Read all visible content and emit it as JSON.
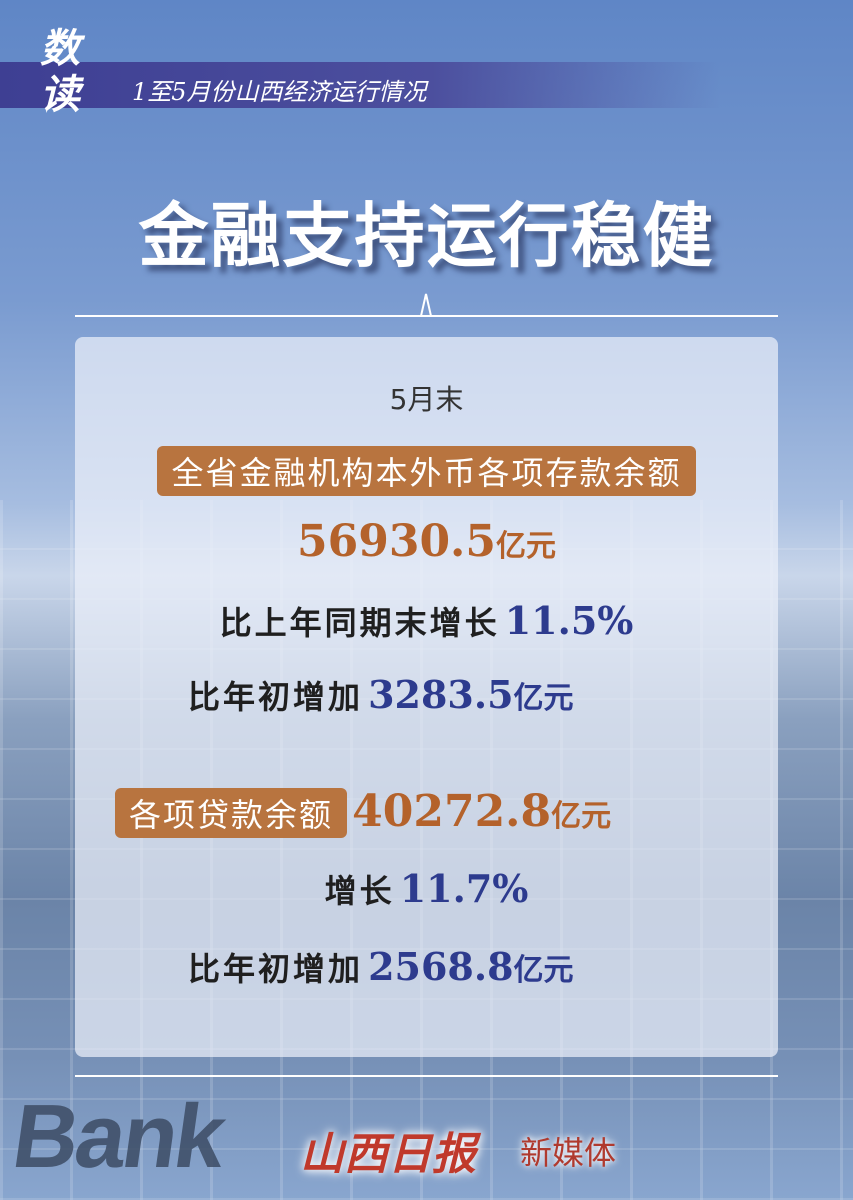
{
  "header": {
    "badge": "数读",
    "subtitle": "1至5月份山西经济运行情况"
  },
  "title": "金融支持运行稳健",
  "period": "5月末",
  "deposits": {
    "label": "全省金融机构本外币各项存款余额",
    "value": "56930.5",
    "unit": "亿元",
    "yoy_label": "比上年同期末增长",
    "yoy_value": "11.5%",
    "ytd_label": "比年初增加",
    "ytd_value": "3283.5",
    "ytd_unit": "亿元"
  },
  "loans": {
    "label": "各项贷款余额",
    "value": "40272.8",
    "unit": "亿元",
    "growth_label": "增长",
    "growth_value": "11.7%",
    "ytd_label": "比年初增加",
    "ytd_value": "2568.8",
    "ytd_unit": "亿元"
  },
  "background_text": "Bank",
  "footer": {
    "logo": "山西日报",
    "suffix": "新媒体"
  },
  "colors": {
    "accent_orange": "#b4622b",
    "tag_bg": "#b8743f",
    "accent_blue": "#2d3b8e",
    "band": "#3e3f93"
  }
}
